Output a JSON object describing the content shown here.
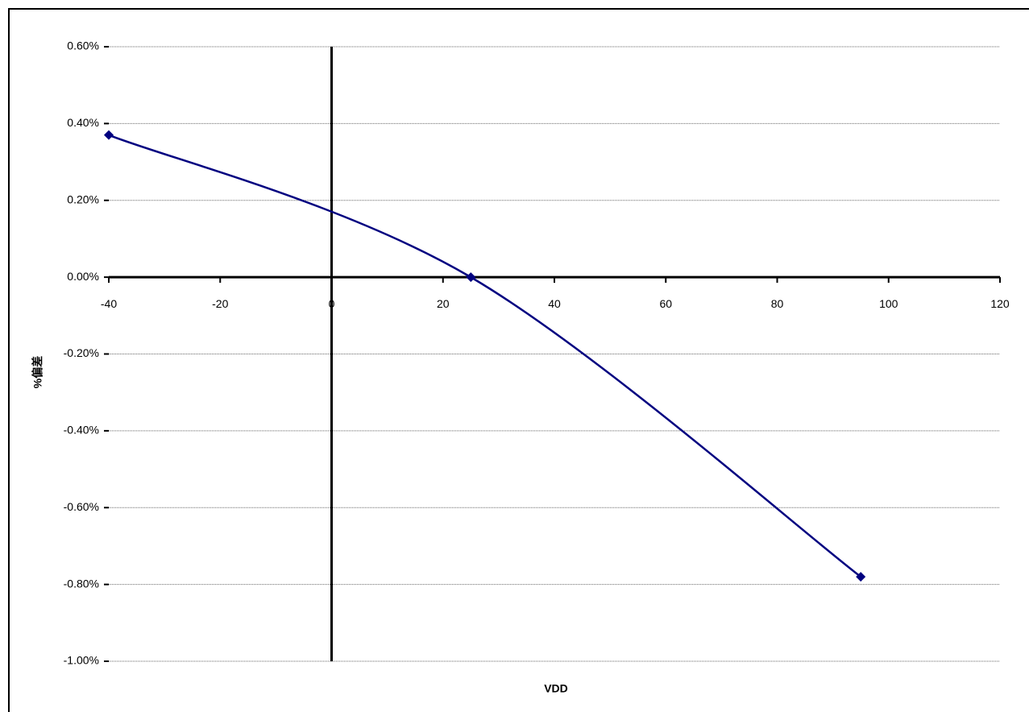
{
  "chart_data": {
    "type": "line",
    "x_label": "VDD",
    "y_label": "%偏差",
    "series": [
      {
        "color": "#000080",
        "x": [
          -40,
          25,
          95
        ],
        "values": [
          0.37,
          0.0,
          -0.78
        ]
      }
    ],
    "xlim": [
      -40,
      120
    ],
    "xticks": [
      -40,
      -20,
      0,
      20,
      40,
      60,
      80,
      100,
      120
    ],
    "ylim": [
      -1.0,
      0.6
    ],
    "yticks": [
      {
        "value": -1.0,
        "label": "-1.00%"
      },
      {
        "value": -0.8,
        "label": "-0.80%"
      },
      {
        "value": -0.6,
        "label": "-0.60%"
      },
      {
        "value": -0.4,
        "label": "-0.40%"
      },
      {
        "value": -0.2,
        "label": "-0.20%"
      },
      {
        "value": 0,
        "label": "0.00%"
      },
      {
        "value": 0.2,
        "label": "0.20%"
      },
      {
        "value": 0.4,
        "label": "0.40%"
      },
      {
        "value": 0.6,
        "label": "0.60%"
      }
    ],
    "grid": true
  }
}
